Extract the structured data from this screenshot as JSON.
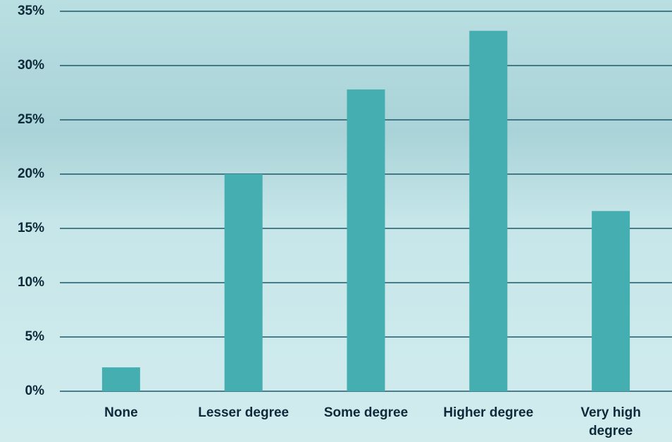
{
  "chart_data": {
    "type": "bar",
    "categories": [
      "None",
      "Lesser degree",
      "Some degree",
      "Higher degree",
      "Very high degree"
    ],
    "values": [
      2.2,
      20.0,
      27.8,
      33.2,
      16.6
    ],
    "color": "#45aeb1",
    "ylim": [
      0,
      35
    ],
    "yticks": [
      {
        "value": 0,
        "label": "0%"
      },
      {
        "value": 5,
        "label": "5%"
      },
      {
        "value": 10,
        "label": "10%"
      },
      {
        "value": 15,
        "label": "15%"
      },
      {
        "value": 20,
        "label": "20%"
      },
      {
        "value": 25,
        "label": "25%"
      },
      {
        "value": 30,
        "label": "30%"
      },
      {
        "value": 35,
        "label": "35%"
      }
    ],
    "grid": true
  }
}
